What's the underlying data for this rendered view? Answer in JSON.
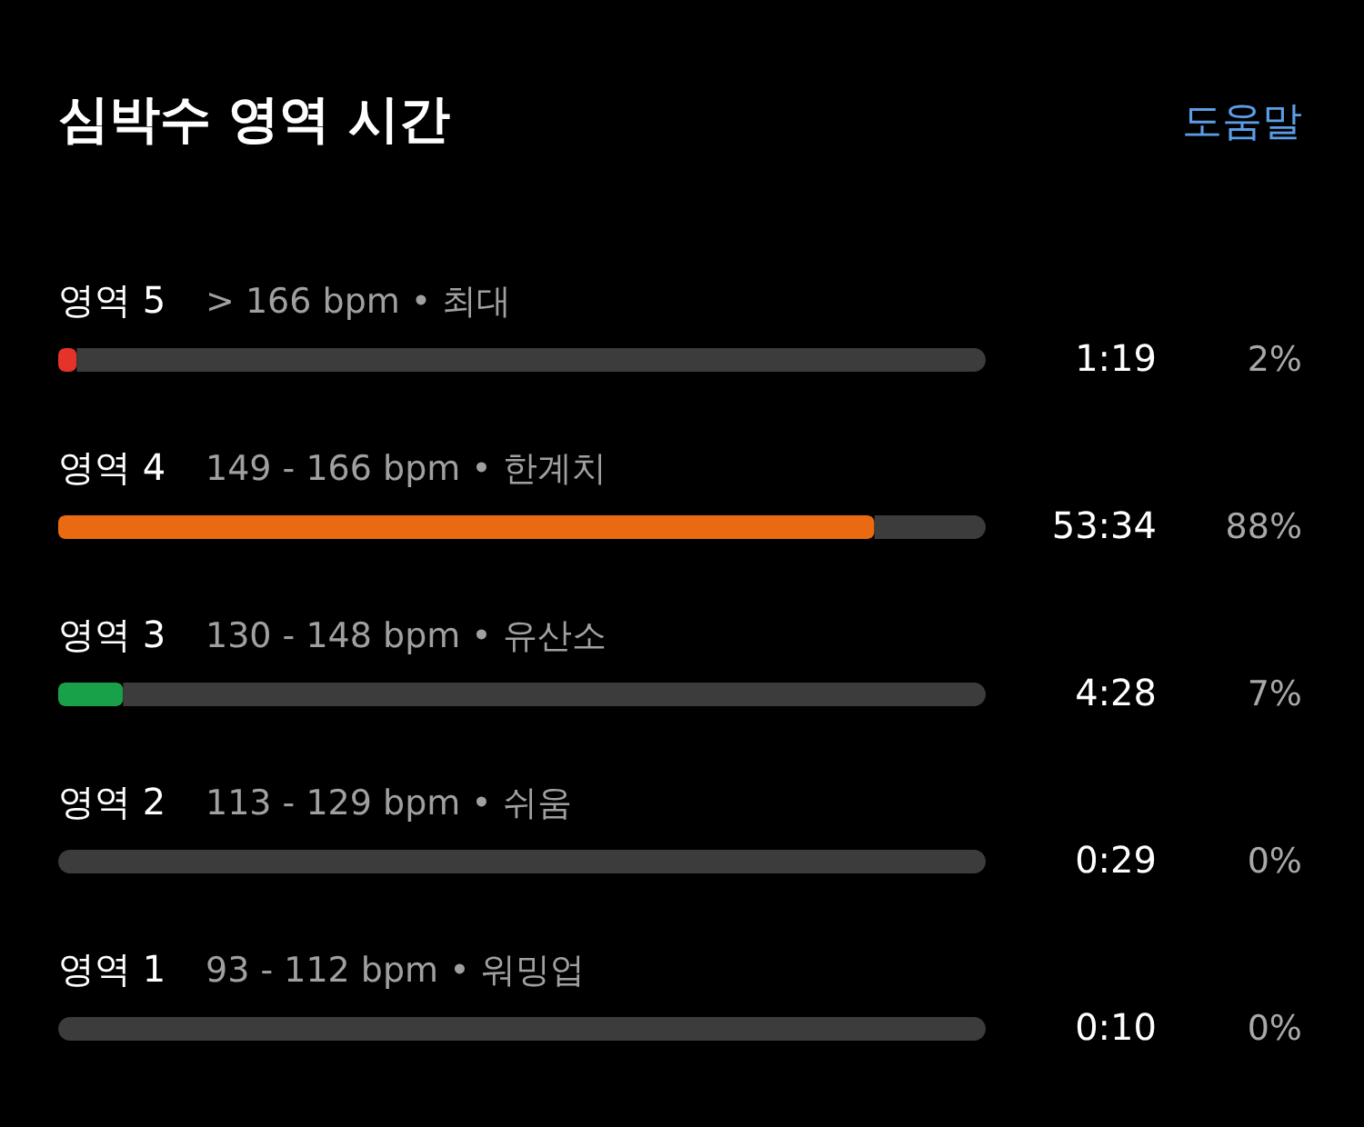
{
  "chart_data": {
    "type": "bar",
    "orientation": "horizontal",
    "stacked": true,
    "title": "심박수 영역 시간",
    "categories": [
      "영역 5",
      "영역 4",
      "영역 3",
      "영역 2",
      "영역 1"
    ],
    "series": [
      {
        "colors": [
          "#e5332a",
          "#ea6a12",
          "#18a148",
          null,
          null
        ],
        "values": [
          2,
          88,
          7,
          0,
          0
        ],
        "value_labels": [
          "2%",
          "88%",
          "7%",
          "0%",
          "0%"
        ]
      },
      {
        "color": "#3c3c3c",
        "values": [
          98,
          12,
          93,
          100,
          100
        ]
      }
    ],
    "xlim": [
      0,
      100
    ],
    "annotations": [
      "도움말",
      "> 166 bpm • 최대",
      "1:19",
      "149 - 166 bpm • 한계치",
      "53:34",
      "130 - 148 bpm • 유산소",
      "4:28",
      "113 - 129 bpm • 쉬움",
      "0:29",
      "93 - 112 bpm • 워밍업",
      "0:10"
    ]
  }
}
